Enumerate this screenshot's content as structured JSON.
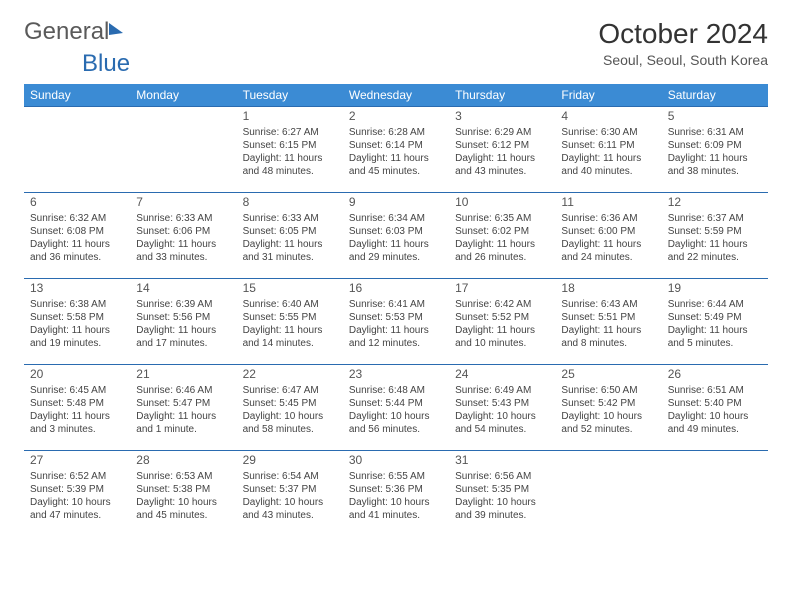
{
  "logo": {
    "part1": "General",
    "part2": "Blue"
  },
  "header": {
    "title": "October 2024",
    "subtitle": "Seoul, Seoul, South Korea"
  },
  "weekdays": [
    "Sunday",
    "Monday",
    "Tuesday",
    "Wednesday",
    "Thursday",
    "Friday",
    "Saturday"
  ],
  "colors": {
    "header_bg": "#3b8bd4",
    "row_border": "#2a6bb0",
    "logo_blue": "#2a6bb0",
    "text": "#444444"
  },
  "weeks": [
    [
      null,
      null,
      {
        "n": "1",
        "sr": "Sunrise: 6:27 AM",
        "ss": "Sunset: 6:15 PM",
        "d1": "Daylight: 11 hours",
        "d2": "and 48 minutes."
      },
      {
        "n": "2",
        "sr": "Sunrise: 6:28 AM",
        "ss": "Sunset: 6:14 PM",
        "d1": "Daylight: 11 hours",
        "d2": "and 45 minutes."
      },
      {
        "n": "3",
        "sr": "Sunrise: 6:29 AM",
        "ss": "Sunset: 6:12 PM",
        "d1": "Daylight: 11 hours",
        "d2": "and 43 minutes."
      },
      {
        "n": "4",
        "sr": "Sunrise: 6:30 AM",
        "ss": "Sunset: 6:11 PM",
        "d1": "Daylight: 11 hours",
        "d2": "and 40 minutes."
      },
      {
        "n": "5",
        "sr": "Sunrise: 6:31 AM",
        "ss": "Sunset: 6:09 PM",
        "d1": "Daylight: 11 hours",
        "d2": "and 38 minutes."
      }
    ],
    [
      {
        "n": "6",
        "sr": "Sunrise: 6:32 AM",
        "ss": "Sunset: 6:08 PM",
        "d1": "Daylight: 11 hours",
        "d2": "and 36 minutes."
      },
      {
        "n": "7",
        "sr": "Sunrise: 6:33 AM",
        "ss": "Sunset: 6:06 PM",
        "d1": "Daylight: 11 hours",
        "d2": "and 33 minutes."
      },
      {
        "n": "8",
        "sr": "Sunrise: 6:33 AM",
        "ss": "Sunset: 6:05 PM",
        "d1": "Daylight: 11 hours",
        "d2": "and 31 minutes."
      },
      {
        "n": "9",
        "sr": "Sunrise: 6:34 AM",
        "ss": "Sunset: 6:03 PM",
        "d1": "Daylight: 11 hours",
        "d2": "and 29 minutes."
      },
      {
        "n": "10",
        "sr": "Sunrise: 6:35 AM",
        "ss": "Sunset: 6:02 PM",
        "d1": "Daylight: 11 hours",
        "d2": "and 26 minutes."
      },
      {
        "n": "11",
        "sr": "Sunrise: 6:36 AM",
        "ss": "Sunset: 6:00 PM",
        "d1": "Daylight: 11 hours",
        "d2": "and 24 minutes."
      },
      {
        "n": "12",
        "sr": "Sunrise: 6:37 AM",
        "ss": "Sunset: 5:59 PM",
        "d1": "Daylight: 11 hours",
        "d2": "and 22 minutes."
      }
    ],
    [
      {
        "n": "13",
        "sr": "Sunrise: 6:38 AM",
        "ss": "Sunset: 5:58 PM",
        "d1": "Daylight: 11 hours",
        "d2": "and 19 minutes."
      },
      {
        "n": "14",
        "sr": "Sunrise: 6:39 AM",
        "ss": "Sunset: 5:56 PM",
        "d1": "Daylight: 11 hours",
        "d2": "and 17 minutes."
      },
      {
        "n": "15",
        "sr": "Sunrise: 6:40 AM",
        "ss": "Sunset: 5:55 PM",
        "d1": "Daylight: 11 hours",
        "d2": "and 14 minutes."
      },
      {
        "n": "16",
        "sr": "Sunrise: 6:41 AM",
        "ss": "Sunset: 5:53 PM",
        "d1": "Daylight: 11 hours",
        "d2": "and 12 minutes."
      },
      {
        "n": "17",
        "sr": "Sunrise: 6:42 AM",
        "ss": "Sunset: 5:52 PM",
        "d1": "Daylight: 11 hours",
        "d2": "and 10 minutes."
      },
      {
        "n": "18",
        "sr": "Sunrise: 6:43 AM",
        "ss": "Sunset: 5:51 PM",
        "d1": "Daylight: 11 hours",
        "d2": "and 8 minutes."
      },
      {
        "n": "19",
        "sr": "Sunrise: 6:44 AM",
        "ss": "Sunset: 5:49 PM",
        "d1": "Daylight: 11 hours",
        "d2": "and 5 minutes."
      }
    ],
    [
      {
        "n": "20",
        "sr": "Sunrise: 6:45 AM",
        "ss": "Sunset: 5:48 PM",
        "d1": "Daylight: 11 hours",
        "d2": "and 3 minutes."
      },
      {
        "n": "21",
        "sr": "Sunrise: 6:46 AM",
        "ss": "Sunset: 5:47 PM",
        "d1": "Daylight: 11 hours",
        "d2": "and 1 minute."
      },
      {
        "n": "22",
        "sr": "Sunrise: 6:47 AM",
        "ss": "Sunset: 5:45 PM",
        "d1": "Daylight: 10 hours",
        "d2": "and 58 minutes."
      },
      {
        "n": "23",
        "sr": "Sunrise: 6:48 AM",
        "ss": "Sunset: 5:44 PM",
        "d1": "Daylight: 10 hours",
        "d2": "and 56 minutes."
      },
      {
        "n": "24",
        "sr": "Sunrise: 6:49 AM",
        "ss": "Sunset: 5:43 PM",
        "d1": "Daylight: 10 hours",
        "d2": "and 54 minutes."
      },
      {
        "n": "25",
        "sr": "Sunrise: 6:50 AM",
        "ss": "Sunset: 5:42 PM",
        "d1": "Daylight: 10 hours",
        "d2": "and 52 minutes."
      },
      {
        "n": "26",
        "sr": "Sunrise: 6:51 AM",
        "ss": "Sunset: 5:40 PM",
        "d1": "Daylight: 10 hours",
        "d2": "and 49 minutes."
      }
    ],
    [
      {
        "n": "27",
        "sr": "Sunrise: 6:52 AM",
        "ss": "Sunset: 5:39 PM",
        "d1": "Daylight: 10 hours",
        "d2": "and 47 minutes."
      },
      {
        "n": "28",
        "sr": "Sunrise: 6:53 AM",
        "ss": "Sunset: 5:38 PM",
        "d1": "Daylight: 10 hours",
        "d2": "and 45 minutes."
      },
      {
        "n": "29",
        "sr": "Sunrise: 6:54 AM",
        "ss": "Sunset: 5:37 PM",
        "d1": "Daylight: 10 hours",
        "d2": "and 43 minutes."
      },
      {
        "n": "30",
        "sr": "Sunrise: 6:55 AM",
        "ss": "Sunset: 5:36 PM",
        "d1": "Daylight: 10 hours",
        "d2": "and 41 minutes."
      },
      {
        "n": "31",
        "sr": "Sunrise: 6:56 AM",
        "ss": "Sunset: 5:35 PM",
        "d1": "Daylight: 10 hours",
        "d2": "and 39 minutes."
      },
      null,
      null
    ]
  ]
}
